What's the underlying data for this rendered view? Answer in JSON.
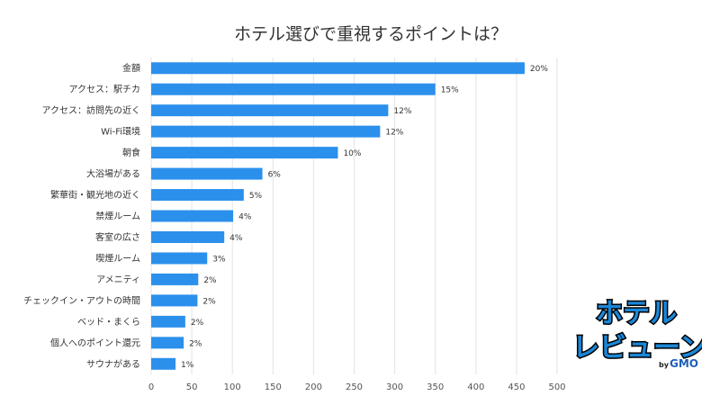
{
  "logo": {
    "line1": "ホテル",
    "line2": "レビューン",
    "by": "by",
    "brand": "GMO"
  },
  "chart_data": {
    "type": "bar",
    "orientation": "horizontal",
    "title": "ホテル選びで重視するポイントは？",
    "xlabel": "",
    "ylabel": "",
    "xlim": [
      0,
      500
    ],
    "xticks": [
      0,
      50,
      100,
      150,
      200,
      250,
      300,
      350,
      400,
      450,
      500
    ],
    "grid": true,
    "bar_color": "#2b90ec",
    "categories": [
      "金額",
      "アクセス：駅チカ",
      "アクセス：訪問先の近く",
      "Wi-Fi環境",
      "朝食",
      "大浴場がある",
      "繁華街・観光地の近く",
      "禁煙ルーム",
      "客室の広さ",
      "喫煙ルーム",
      "アメニティ",
      "チェックイン・アウトの時間",
      "ベッド・まくら",
      "個人へのポイント還元",
      "サウナがある"
    ],
    "values": [
      460,
      350,
      292,
      282,
      230,
      137,
      114,
      101,
      90,
      69,
      58,
      57,
      42,
      40,
      30
    ],
    "labels": [
      "20%",
      "15%",
      "12%",
      "12%",
      "10%",
      "6%",
      "5%",
      "4%",
      "4%",
      "3%",
      "2%",
      "2%",
      "2%",
      "2%",
      "1%"
    ]
  }
}
